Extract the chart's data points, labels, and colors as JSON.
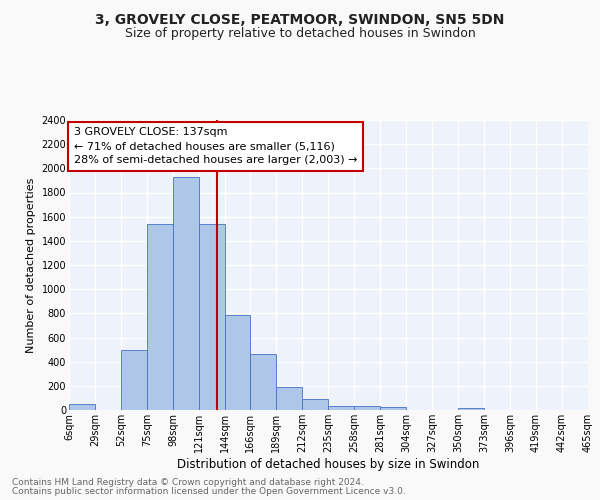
{
  "title": "3, GROVELY CLOSE, PEATMOOR, SWINDON, SN5 5DN",
  "subtitle": "Size of property relative to detached houses in Swindon",
  "xlabel": "Distribution of detached houses by size in Swindon",
  "ylabel": "Number of detached properties",
  "footnote1": "Contains HM Land Registry data © Crown copyright and database right 2024.",
  "footnote2": "Contains public sector information licensed under the Open Government Licence v3.0.",
  "annotation_line1": "3 GROVELY CLOSE: 137sqm",
  "annotation_line2": "← 71% of detached houses are smaller (5,116)",
  "annotation_line3": "28% of semi-detached houses are larger (2,003) →",
  "bar_left_edges": [
    6,
    29,
    52,
    75,
    98,
    121,
    144,
    166,
    189,
    212,
    235,
    258,
    281,
    304,
    327,
    350,
    373,
    396,
    419,
    442
  ],
  "bar_widths": [
    23,
    23,
    23,
    23,
    23,
    23,
    22,
    23,
    23,
    23,
    23,
    23,
    23,
    23,
    23,
    23,
    23,
    23,
    23,
    23
  ],
  "bar_heights": [
    50,
    0,
    500,
    1540,
    1930,
    1540,
    785,
    460,
    190,
    90,
    35,
    35,
    25,
    0,
    0,
    20,
    0,
    0,
    0,
    0
  ],
  "bar_color": "#aec6e8",
  "bar_edgecolor": "#4472c4",
  "vline_x": 137,
  "vline_color": "#c00000",
  "ylim": [
    0,
    2400
  ],
  "yticks": [
    0,
    200,
    400,
    600,
    800,
    1000,
    1200,
    1400,
    1600,
    1800,
    2000,
    2200,
    2400
  ],
  "xtick_labels": [
    "6sqm",
    "29sqm",
    "52sqm",
    "75sqm",
    "98sqm",
    "121sqm",
    "144sqm",
    "166sqm",
    "189sqm",
    "212sqm",
    "235sqm",
    "258sqm",
    "281sqm",
    "304sqm",
    "327sqm",
    "350sqm",
    "373sqm",
    "396sqm",
    "419sqm",
    "442sqm",
    "465sqm"
  ],
  "xtick_positions": [
    6,
    29,
    52,
    75,
    98,
    121,
    144,
    166,
    189,
    212,
    235,
    258,
    281,
    304,
    327,
    350,
    373,
    396,
    419,
    442,
    465
  ],
  "bg_color": "#eef2fb",
  "grid_color": "#ffffff",
  "fig_bg": "#f9f9f9",
  "title_fontsize": 10,
  "subtitle_fontsize": 9,
  "xlabel_fontsize": 8.5,
  "ylabel_fontsize": 8,
  "tick_fontsize": 7,
  "annotation_fontsize": 8,
  "footnote_fontsize": 6.5
}
